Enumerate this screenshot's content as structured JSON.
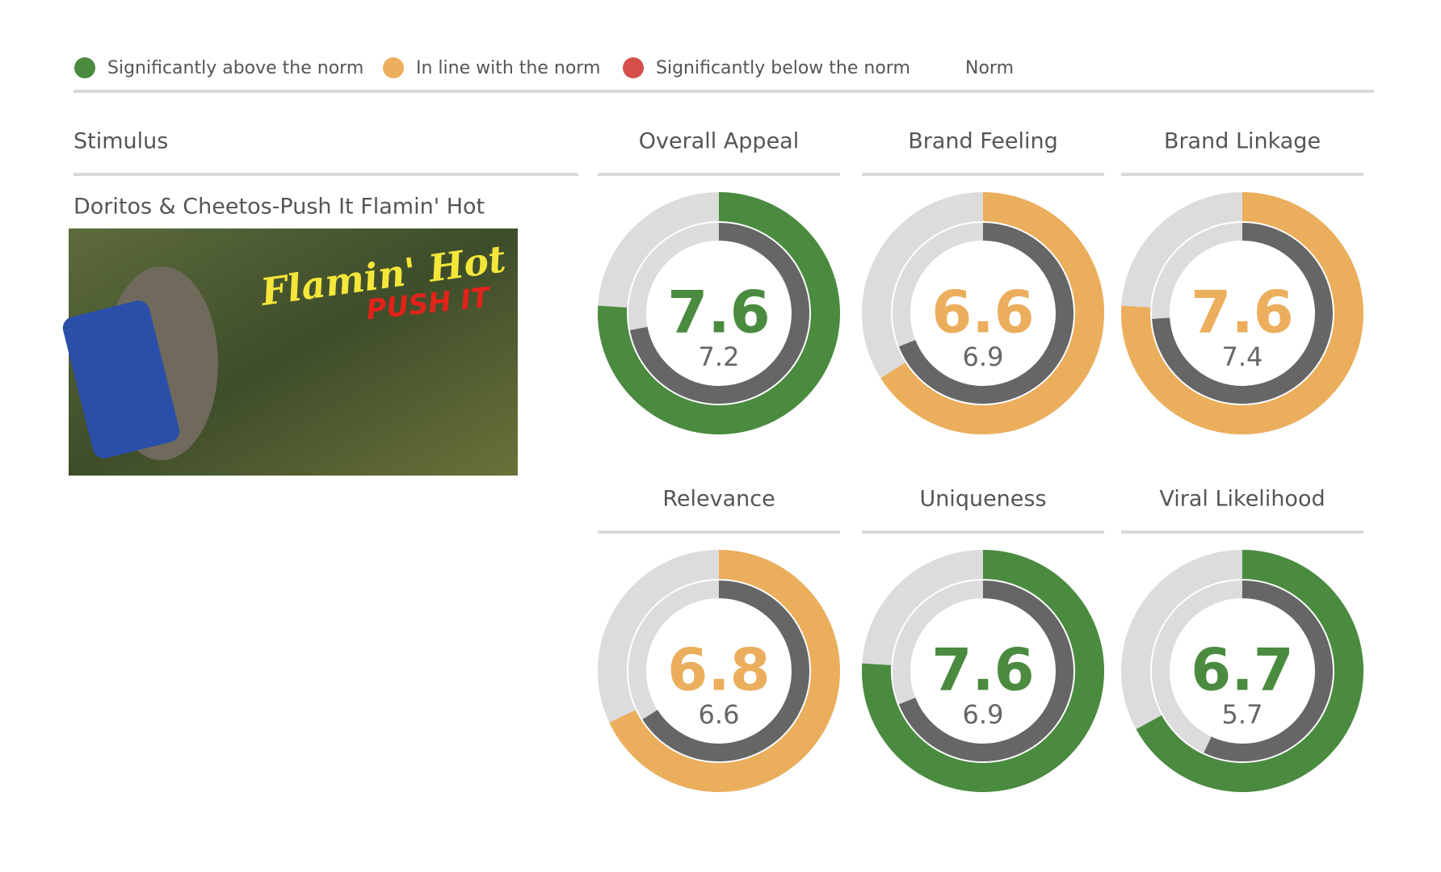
{
  "legend": [
    {
      "label": "Significantly above the norm",
      "color": "#4a8b3f"
    },
    {
      "label": "In line with the norm",
      "color": "#ebae5c"
    },
    {
      "label": "Significantly below the norm",
      "color": "#d44f4a"
    }
  ],
  "stimulus": {
    "header": "Stimulus",
    "name": "Doritos & Cheetos-Push It Flamin' Hot",
    "image_text": [
      "Flamin' Hot",
      "PUSH IT"
    ]
  },
  "chart_data": {
    "type": "gauge",
    "ylim": [
      0,
      10
    ],
    "categories": [
      "Overall Appeal",
      "Brand Feeling",
      "Brand Linkage",
      "Relevance",
      "Uniqueness",
      "Viral Likelihood"
    ],
    "series": [
      {
        "colors": [
          "#4a8b3f",
          "#ebae5c",
          "#ebae5c",
          "#ebae5c",
          "#4a8b3f",
          "#4a8b3f"
        ],
        "values": [
          7.6,
          6.6,
          7.6,
          6.8,
          7.6,
          6.7
        ]
      },
      {
        "name": "Norm",
        "color": "#666666",
        "values": [
          7.2,
          6.9,
          7.4,
          6.6,
          6.9,
          5.7
        ]
      }
    ]
  }
}
